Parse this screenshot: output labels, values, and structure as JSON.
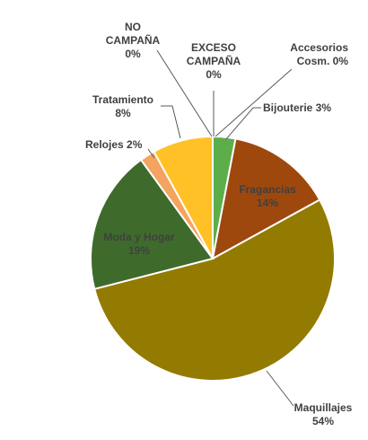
{
  "chart_data": {
    "type": "pie",
    "title": "",
    "slices": [
      {
        "label_lines": [
          "EXCESO",
          "CAMPAÑA",
          "0%"
        ],
        "value": 0,
        "color": "#FFFF00"
      },
      {
        "label_lines": [
          "Accesorios",
          "Cosm. 0%"
        ],
        "value": 0,
        "color": "#7F7F7F"
      },
      {
        "label_lines": [
          "Bijouterie 3%"
        ],
        "value": 3,
        "color": "#5DAE4B"
      },
      {
        "label_lines": [
          "Fragancias",
          "14%"
        ],
        "value": 14,
        "color": "#9E480E"
      },
      {
        "label_lines": [
          "Maquillajes",
          "54%"
        ],
        "value": 54,
        "color": "#937A00"
      },
      {
        "label_lines": [
          "Moda y Hogar",
          "19%"
        ],
        "value": 19,
        "color": "#3E6B2C"
      },
      {
        "label_lines": [
          "Relojes 2%"
        ],
        "value": 2,
        "color": "#F4A460"
      },
      {
        "label_lines": [
          "Tratamiento",
          "8%"
        ],
        "value": 8,
        "color": "#FFC126"
      },
      {
        "label_lines": [
          "NO",
          "CAMPAÑA",
          "0%"
        ],
        "value": 0,
        "color": "#2F5597"
      }
    ],
    "start_angle_deg": 0,
    "direction": "clockwise",
    "legend": "none",
    "data_labels": "category and percent"
  }
}
